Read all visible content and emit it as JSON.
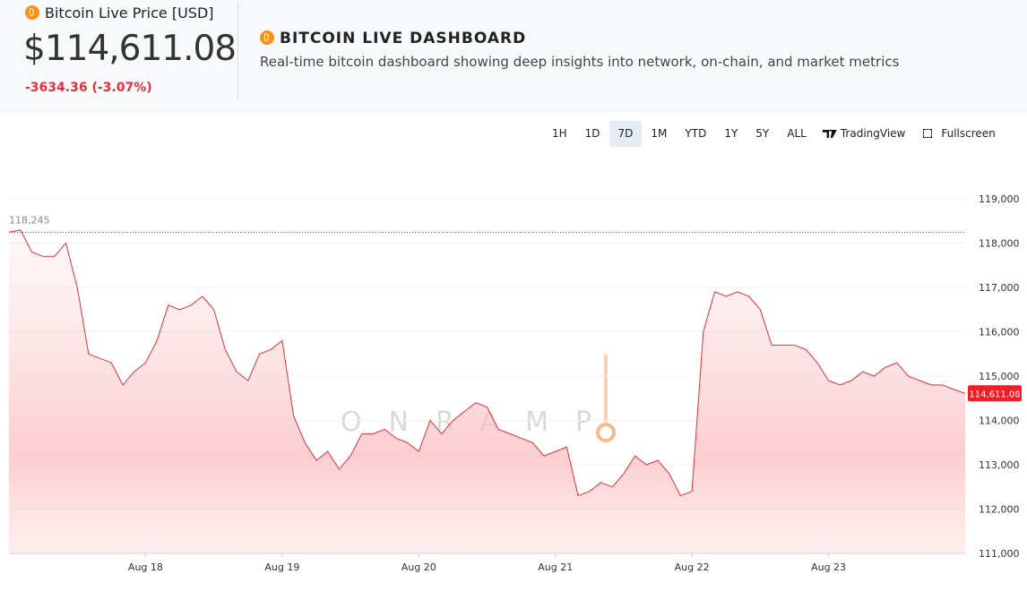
{
  "header": {
    "label": "Bitcoin Live Price [USD]",
    "price": "$114,611.08",
    "change": "-3634.36 (-3.07%)",
    "title": "BITCOIN LIVE DASHBOARD",
    "subtitle": "Real-time bitcoin dashboard showing deep insights into network, on-chain, and market metrics"
  },
  "toolbar": {
    "ranges": [
      "1H",
      "1D",
      "7D",
      "1M",
      "YTD",
      "1Y",
      "5Y",
      "ALL"
    ],
    "active": "7D",
    "tradingview": "TradingView",
    "fullscreen": "Fullscreen"
  },
  "watermark": "ONRAMP",
  "chart_data": {
    "type": "line",
    "color": "#e0323c",
    "values": [
      118245,
      118300,
      117800,
      117700,
      117700,
      118000,
      117000,
      115500,
      115400,
      115300,
      114800,
      115100,
      115300,
      115800,
      116600,
      116500,
      116600,
      116800,
      116500,
      115600,
      115100,
      114900,
      115500,
      115600,
      115800,
      114100,
      113500,
      113100,
      113300,
      112900,
      113200,
      113700,
      113700,
      113800,
      113600,
      113500,
      113300,
      114000,
      113700,
      114000,
      114200,
      114400,
      114300,
      113800,
      113700,
      113600,
      113500,
      113200,
      113300,
      113400,
      112300,
      112400,
      112600,
      112500,
      112800,
      113200,
      113000,
      113100,
      112800,
      112300,
      112400,
      116000,
      116900,
      116800,
      116900,
      116800,
      116500,
      115700,
      115700,
      115700,
      115600,
      115300,
      114900,
      114800,
      114900,
      115100,
      115000,
      115200,
      115300,
      115000,
      114900,
      114800,
      114800,
      114700,
      114611.08
    ],
    "xlim": [
      0,
      84
    ],
    "xticks": [
      {
        "value": 12,
        "label": "Aug 18"
      },
      {
        "value": 24,
        "label": "Aug 19"
      },
      {
        "value": 36,
        "label": "Aug 20"
      },
      {
        "value": 48,
        "label": "Aug 21"
      },
      {
        "value": 60,
        "label": "Aug 22"
      },
      {
        "value": 72,
        "label": "Aug 23"
      }
    ],
    "ylim": [
      111000,
      119000
    ],
    "yticks": [
      {
        "value": 111000,
        "label": "111,000"
      },
      {
        "value": 112000,
        "label": "112,000"
      },
      {
        "value": 113000,
        "label": "113,000"
      },
      {
        "value": 114000,
        "label": "114,000"
      },
      {
        "value": 115000,
        "label": "115,000"
      },
      {
        "value": 116000,
        "label": "116,000"
      },
      {
        "value": 117000,
        "label": "117,000"
      },
      {
        "value": 118000,
        "label": "118,000"
      },
      {
        "value": 119000,
        "label": "119,000"
      }
    ],
    "grid": true,
    "reference_line": {
      "value": 118245,
      "label": "118,245"
    },
    "last_price": {
      "value": 114611.08,
      "label": "114,611.08"
    }
  }
}
